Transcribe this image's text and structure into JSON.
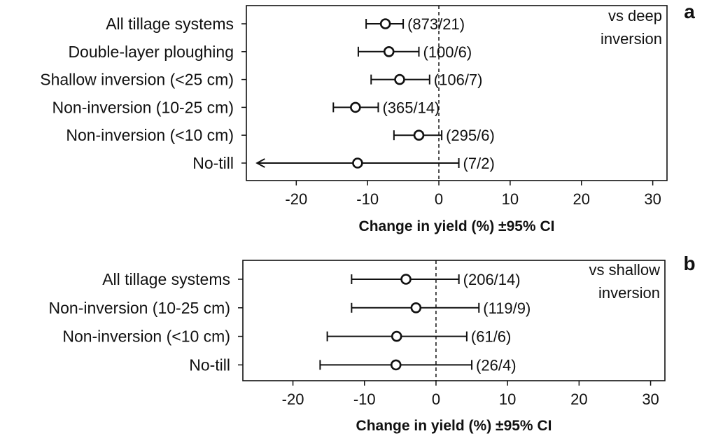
{
  "chart_data": [
    {
      "type": "forest",
      "panel": "a",
      "reference": "vs deep\ninversion",
      "xlabel": "Change in yield (%) ±95% CI",
      "xlim": [
        -27,
        32
      ],
      "xticks": [
        -20,
        -10,
        0,
        10,
        20,
        30
      ],
      "grid": false,
      "rows": [
        {
          "label": "All tillage systems",
          "estimate": -7.5,
          "lower": -10.2,
          "upper": -5.0,
          "n": "(873/21)"
        },
        {
          "label": "Double-layer ploughing",
          "estimate": -7.0,
          "lower": -11.3,
          "upper": -2.8,
          "n": "(100/6)"
        },
        {
          "label": "Shallow inversion (<25 cm)",
          "estimate": -5.5,
          "lower": -9.5,
          "upper": -1.3,
          "n": "(106/7)"
        },
        {
          "label": "Non-inversion (10-25 cm)",
          "estimate": -11.7,
          "lower": -14.8,
          "upper": -8.5,
          "n": "(365/14)"
        },
        {
          "label": "Non-inversion (<10 cm)",
          "estimate": -2.8,
          "lower": -6.3,
          "upper": 0.4,
          "n": "(295/6)"
        },
        {
          "label": "No-till",
          "estimate": -11.4,
          "lower": -25.5,
          "upper": 2.8,
          "n": "(7/2)",
          "lower_truncated": true
        }
      ]
    },
    {
      "type": "forest",
      "panel": "b",
      "reference": "vs shallow\ninversion",
      "xlabel": "Change in yield (%) ±95% CI",
      "xlim": [
        -27,
        32
      ],
      "xticks": [
        -20,
        -10,
        0,
        10,
        20,
        30
      ],
      "grid": false,
      "rows": [
        {
          "label": "All tillage systems",
          "estimate": -4.2,
          "lower": -11.8,
          "upper": 3.2,
          "n": "(206/14)"
        },
        {
          "label": "Non-inversion (10-25 cm)",
          "estimate": -2.8,
          "lower": -11.8,
          "upper": 6.0,
          "n": "(119/9)"
        },
        {
          "label": "Non-inversion (<10 cm)",
          "estimate": -5.5,
          "lower": -15.2,
          "upper": 4.3,
          "n": "(61/6)"
        },
        {
          "label": "No-till",
          "estimate": -5.6,
          "lower": -16.2,
          "upper": 5.0,
          "n": "(26/4)"
        }
      ]
    }
  ]
}
